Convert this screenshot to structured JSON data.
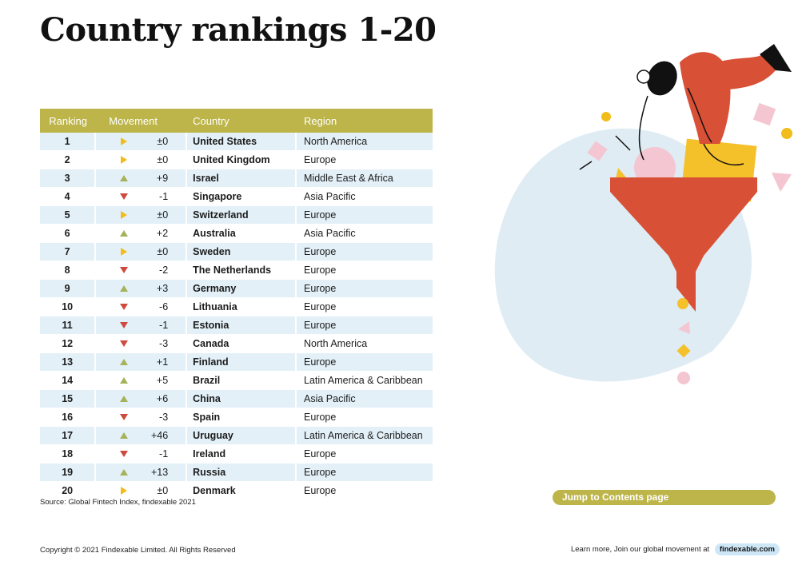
{
  "title": "Country rankings 1-20",
  "table": {
    "headers": {
      "ranking": "Ranking",
      "movement": "Movement",
      "country": "Country",
      "region": "Region"
    },
    "rows": [
      {
        "rank": "1",
        "dir": "flat",
        "change": "±0",
        "country": "United States",
        "region": "North America"
      },
      {
        "rank": "2",
        "dir": "flat",
        "change": "±0",
        "country": "United Kingdom",
        "region": "Europe"
      },
      {
        "rank": "3",
        "dir": "up",
        "change": "+9",
        "country": "Israel",
        "region": "Middle East & Africa"
      },
      {
        "rank": "4",
        "dir": "down",
        "change": "-1",
        "country": "Singapore",
        "region": "Asia Pacific"
      },
      {
        "rank": "5",
        "dir": "flat",
        "change": "±0",
        "country": "Switzerland",
        "region": "Europe"
      },
      {
        "rank": "6",
        "dir": "up",
        "change": "+2",
        "country": "Australia",
        "region": "Asia Pacific"
      },
      {
        "rank": "7",
        "dir": "flat",
        "change": "±0",
        "country": "Sweden",
        "region": "Europe"
      },
      {
        "rank": "8",
        "dir": "down",
        "change": "-2",
        "country": "The Netherlands",
        "region": "Europe"
      },
      {
        "rank": "9",
        "dir": "up",
        "change": "+3",
        "country": "Germany",
        "region": "Europe"
      },
      {
        "rank": "10",
        "dir": "down",
        "change": "-6",
        "country": "Lithuania",
        "region": "Europe"
      },
      {
        "rank": "11",
        "dir": "down",
        "change": "-1",
        "country": "Estonia",
        "region": "Europe"
      },
      {
        "rank": "12",
        "dir": "down",
        "change": "-3",
        "country": "Canada",
        "region": "North America"
      },
      {
        "rank": "13",
        "dir": "up",
        "change": "+1",
        "country": "Finland",
        "region": "Europe"
      },
      {
        "rank": "14",
        "dir": "up",
        "change": "+5",
        "country": "Brazil",
        "region": "Latin America & Caribbean"
      },
      {
        "rank": "15",
        "dir": "up",
        "change": "+6",
        "country": "China",
        "region": "Asia Pacific"
      },
      {
        "rank": "16",
        "dir": "down",
        "change": "-3",
        "country": "Spain",
        "region": "Europe"
      },
      {
        "rank": "17",
        "dir": "up",
        "change": "+46",
        "country": "Uruguay",
        "region": "Latin America & Caribbean"
      },
      {
        "rank": "18",
        "dir": "down",
        "change": "-1",
        "country": "Ireland",
        "region": "Europe"
      },
      {
        "rank": "19",
        "dir": "up",
        "change": "+13",
        "country": "Russia",
        "region": "Europe"
      },
      {
        "rank": "20",
        "dir": "flat",
        "change": "±0",
        "country": "Denmark",
        "region": "Europe"
      }
    ]
  },
  "source": "Source: Global Fintech Index, findexable 2021",
  "jump_label": "Jump to Contents page",
  "footer": {
    "copyright": "Copyright © 2021 Findexable Limited. All Rights Reserved",
    "learn_text": "Learn more, Join our global movement at",
    "link": "findexable.com"
  },
  "colors": {
    "header": "#bdb549",
    "row_alt": "#e3f0f8",
    "up": "#a6b25a",
    "down": "#cf4a3e",
    "flat": "#f1bd1c"
  }
}
